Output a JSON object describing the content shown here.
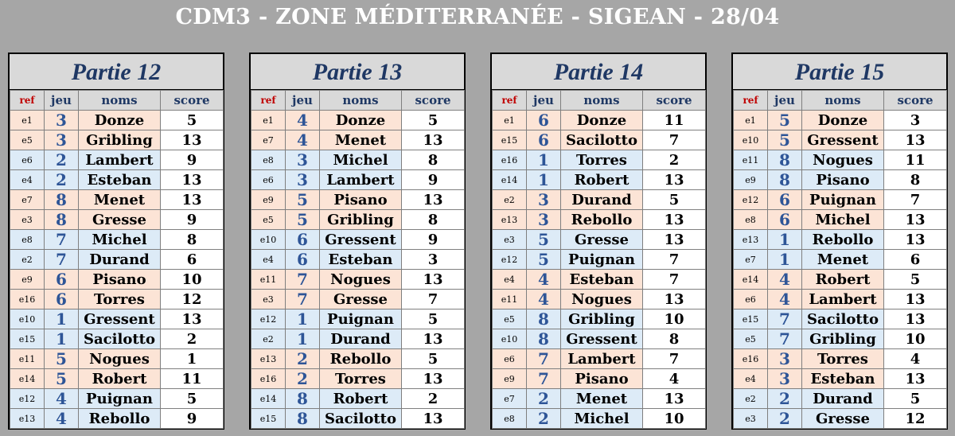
{
  "title": "CDM3 - ZONE MÉDITERRANÉE - SIGEAN - 28/04",
  "headers": {
    "ref": "ref",
    "jeu": "jeu",
    "noms": "noms",
    "score": "score"
  },
  "colors": {
    "peach": "#fce4d6",
    "blue": "#ddebf7",
    "title_blue": "#1f3864",
    "ref_red": "#c00000"
  },
  "parties": [
    {
      "title": "Partie 12",
      "rows": [
        {
          "ref": "e1",
          "jeu": "3",
          "nom": "Donze",
          "score": "5",
          "tone": "peach"
        },
        {
          "ref": "e5",
          "jeu": "3",
          "nom": "Gribling",
          "score": "13",
          "tone": "peach"
        },
        {
          "ref": "e6",
          "jeu": "2",
          "nom": "Lambert",
          "score": "9",
          "tone": "blue"
        },
        {
          "ref": "e4",
          "jeu": "2",
          "nom": "Esteban",
          "score": "13",
          "tone": "blue"
        },
        {
          "ref": "e7",
          "jeu": "8",
          "nom": "Menet",
          "score": "13",
          "tone": "peach"
        },
        {
          "ref": "e3",
          "jeu": "8",
          "nom": "Gresse",
          "score": "9",
          "tone": "peach"
        },
        {
          "ref": "e8",
          "jeu": "7",
          "nom": "Michel",
          "score": "8",
          "tone": "blue"
        },
        {
          "ref": "e2",
          "jeu": "7",
          "nom": "Durand",
          "score": "6",
          "tone": "blue"
        },
        {
          "ref": "e9",
          "jeu": "6",
          "nom": "Pisano",
          "score": "10",
          "tone": "peach"
        },
        {
          "ref": "e16",
          "jeu": "6",
          "nom": "Torres",
          "score": "12",
          "tone": "peach"
        },
        {
          "ref": "e10",
          "jeu": "1",
          "nom": "Gressent",
          "score": "13",
          "tone": "blue"
        },
        {
          "ref": "e15",
          "jeu": "1",
          "nom": "Sacilotto",
          "score": "2",
          "tone": "blue"
        },
        {
          "ref": "e11",
          "jeu": "5",
          "nom": "Nogues",
          "score": "1",
          "tone": "peach"
        },
        {
          "ref": "e14",
          "jeu": "5",
          "nom": "Robert",
          "score": "11",
          "tone": "peach"
        },
        {
          "ref": "e12",
          "jeu": "4",
          "nom": "Puignan",
          "score": "5",
          "tone": "blue"
        },
        {
          "ref": "e13",
          "jeu": "4",
          "nom": "Rebollo",
          "score": "9",
          "tone": "blue"
        }
      ]
    },
    {
      "title": "Partie 13",
      "rows": [
        {
          "ref": "e1",
          "jeu": "4",
          "nom": "Donze",
          "score": "5",
          "tone": "peach"
        },
        {
          "ref": "e7",
          "jeu": "4",
          "nom": "Menet",
          "score": "13",
          "tone": "peach"
        },
        {
          "ref": "e8",
          "jeu": "3",
          "nom": "Michel",
          "score": "8",
          "tone": "blue"
        },
        {
          "ref": "e6",
          "jeu": "3",
          "nom": "Lambert",
          "score": "9",
          "tone": "blue"
        },
        {
          "ref": "e9",
          "jeu": "5",
          "nom": "Pisano",
          "score": "13",
          "tone": "peach"
        },
        {
          "ref": "e5",
          "jeu": "5",
          "nom": "Gribling",
          "score": "8",
          "tone": "peach"
        },
        {
          "ref": "e10",
          "jeu": "6",
          "nom": "Gressent",
          "score": "9",
          "tone": "blue"
        },
        {
          "ref": "e4",
          "jeu": "6",
          "nom": "Esteban",
          "score": "3",
          "tone": "blue"
        },
        {
          "ref": "e11",
          "jeu": "7",
          "nom": "Nogues",
          "score": "13",
          "tone": "peach"
        },
        {
          "ref": "e3",
          "jeu": "7",
          "nom": "Gresse",
          "score": "7",
          "tone": "peach"
        },
        {
          "ref": "e12",
          "jeu": "1",
          "nom": "Puignan",
          "score": "5",
          "tone": "blue"
        },
        {
          "ref": "e2",
          "jeu": "1",
          "nom": "Durand",
          "score": "13",
          "tone": "blue"
        },
        {
          "ref": "e13",
          "jeu": "2",
          "nom": "Rebollo",
          "score": "5",
          "tone": "peach"
        },
        {
          "ref": "e16",
          "jeu": "2",
          "nom": "Torres",
          "score": "13",
          "tone": "peach"
        },
        {
          "ref": "e14",
          "jeu": "8",
          "nom": "Robert",
          "score": "2",
          "tone": "blue"
        },
        {
          "ref": "e15",
          "jeu": "8",
          "nom": "Sacilotto",
          "score": "13",
          "tone": "blue"
        }
      ]
    },
    {
      "title": "Partie 14",
      "rows": [
        {
          "ref": "e1",
          "jeu": "6",
          "nom": "Donze",
          "score": "11",
          "tone": "peach"
        },
        {
          "ref": "e15",
          "jeu": "6",
          "nom": "Sacilotto",
          "score": "7",
          "tone": "peach"
        },
        {
          "ref": "e16",
          "jeu": "1",
          "nom": "Torres",
          "score": "2",
          "tone": "blue"
        },
        {
          "ref": "e14",
          "jeu": "1",
          "nom": "Robert",
          "score": "13",
          "tone": "blue"
        },
        {
          "ref": "e2",
          "jeu": "3",
          "nom": "Durand",
          "score": "5",
          "tone": "peach"
        },
        {
          "ref": "e13",
          "jeu": "3",
          "nom": "Rebollo",
          "score": "13",
          "tone": "peach"
        },
        {
          "ref": "e3",
          "jeu": "5",
          "nom": "Gresse",
          "score": "13",
          "tone": "blue"
        },
        {
          "ref": "e12",
          "jeu": "5",
          "nom": "Puignan",
          "score": "7",
          "tone": "blue"
        },
        {
          "ref": "e4",
          "jeu": "4",
          "nom": "Esteban",
          "score": "7",
          "tone": "peach"
        },
        {
          "ref": "e11",
          "jeu": "4",
          "nom": "Nogues",
          "score": "13",
          "tone": "peach"
        },
        {
          "ref": "e5",
          "jeu": "8",
          "nom": "Gribling",
          "score": "10",
          "tone": "blue"
        },
        {
          "ref": "e10",
          "jeu": "8",
          "nom": "Gressent",
          "score": "8",
          "tone": "blue"
        },
        {
          "ref": "e6",
          "jeu": "7",
          "nom": "Lambert",
          "score": "7",
          "tone": "peach"
        },
        {
          "ref": "e9",
          "jeu": "7",
          "nom": "Pisano",
          "score": "4",
          "tone": "peach"
        },
        {
          "ref": "e7",
          "jeu": "2",
          "nom": "Menet",
          "score": "13",
          "tone": "blue"
        },
        {
          "ref": "e8",
          "jeu": "2",
          "nom": "Michel",
          "score": "10",
          "tone": "blue"
        }
      ]
    },
    {
      "title": "Partie 15",
      "rows": [
        {
          "ref": "e1",
          "jeu": "5",
          "nom": "Donze",
          "score": "3",
          "tone": "peach"
        },
        {
          "ref": "e10",
          "jeu": "5",
          "nom": "Gressent",
          "score": "13",
          "tone": "peach"
        },
        {
          "ref": "e11",
          "jeu": "8",
          "nom": "Nogues",
          "score": "11",
          "tone": "blue"
        },
        {
          "ref": "e9",
          "jeu": "8",
          "nom": "Pisano",
          "score": "8",
          "tone": "blue"
        },
        {
          "ref": "e12",
          "jeu": "6",
          "nom": "Puignan",
          "score": "7",
          "tone": "peach"
        },
        {
          "ref": "e8",
          "jeu": "6",
          "nom": "Michel",
          "score": "13",
          "tone": "peach"
        },
        {
          "ref": "e13",
          "jeu": "1",
          "nom": "Rebollo",
          "score": "13",
          "tone": "blue"
        },
        {
          "ref": "e7",
          "jeu": "1",
          "nom": "Menet",
          "score": "6",
          "tone": "blue"
        },
        {
          "ref": "e14",
          "jeu": "4",
          "nom": "Robert",
          "score": "5",
          "tone": "peach"
        },
        {
          "ref": "e6",
          "jeu": "4",
          "nom": "Lambert",
          "score": "13",
          "tone": "peach"
        },
        {
          "ref": "e15",
          "jeu": "7",
          "nom": "Sacilotto",
          "score": "13",
          "tone": "blue"
        },
        {
          "ref": "e5",
          "jeu": "7",
          "nom": "Gribling",
          "score": "10",
          "tone": "blue"
        },
        {
          "ref": "e16",
          "jeu": "3",
          "nom": "Torres",
          "score": "4",
          "tone": "peach"
        },
        {
          "ref": "e4",
          "jeu": "3",
          "nom": "Esteban",
          "score": "13",
          "tone": "peach"
        },
        {
          "ref": "e2",
          "jeu": "2",
          "nom": "Durand",
          "score": "5",
          "tone": "blue"
        },
        {
          "ref": "e3",
          "jeu": "2",
          "nom": "Gresse",
          "score": "12",
          "tone": "blue"
        }
      ]
    }
  ]
}
